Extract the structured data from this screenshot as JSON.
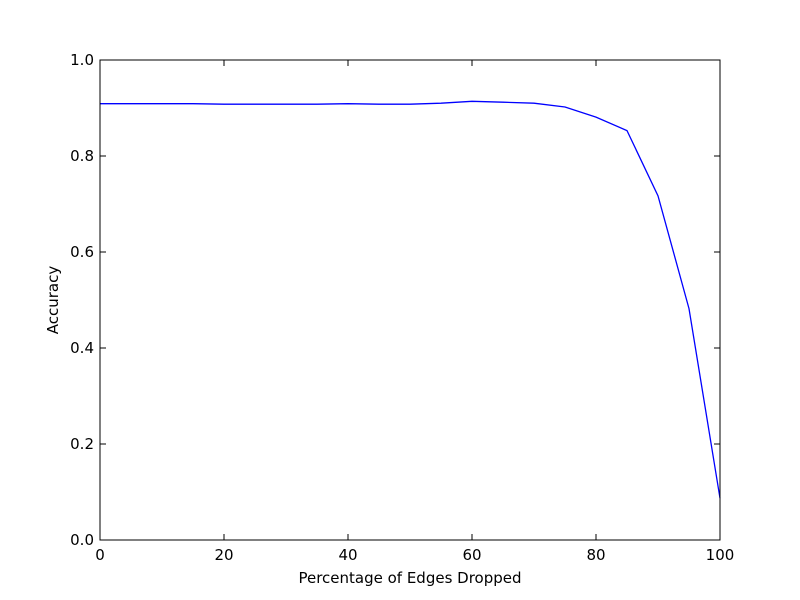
{
  "chart_data": {
    "type": "line",
    "title": "",
    "xlabel": "Percentage of Edges Dropped",
    "ylabel": "Accuracy",
    "xlim": [
      0,
      100
    ],
    "ylim": [
      0.0,
      1.0
    ],
    "grid": false,
    "x_ticks": [
      0,
      20,
      40,
      60,
      80,
      100
    ],
    "y_ticks": [
      0.0,
      0.2,
      0.4,
      0.6,
      0.8,
      1.0
    ],
    "x_tick_labels": [
      "0",
      "20",
      "40",
      "60",
      "80",
      "100"
    ],
    "y_tick_labels": [
      "0.0",
      "0.2",
      "0.4",
      "0.6",
      "0.8",
      "1.0"
    ],
    "series": [
      {
        "color": "#0000ff",
        "x": [
          0,
          5,
          10,
          15,
          20,
          25,
          30,
          35,
          40,
          45,
          50,
          55,
          60,
          65,
          70,
          75,
          80,
          85,
          90,
          95,
          100
        ],
        "y": [
          0.909,
          0.909,
          0.909,
          0.909,
          0.908,
          0.908,
          0.908,
          0.908,
          0.909,
          0.908,
          0.908,
          0.91,
          0.914,
          0.912,
          0.91,
          0.902,
          0.881,
          0.853,
          0.717,
          0.482,
          0.087
        ]
      }
    ]
  }
}
